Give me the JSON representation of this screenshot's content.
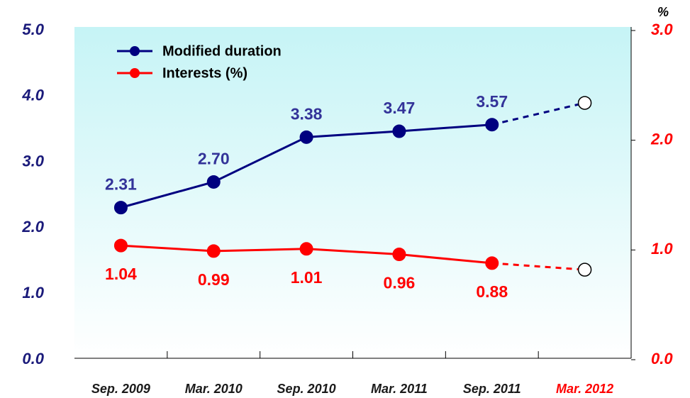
{
  "chart_data": {
    "type": "line",
    "categories": [
      "Sep. 2009",
      "Mar. 2010",
      "Sep. 2010",
      "Mar. 2011",
      "Sep. 2011",
      "Mar. 2012"
    ],
    "category_colors": [
      "#1a1a1a",
      "#1a1a1a",
      "#1a1a1a",
      "#1a1a1a",
      "#1a1a1a",
      "#ff0000"
    ],
    "series": [
      {
        "name": "Modified duration",
        "color": "#000080",
        "label_color": "#333399",
        "axis": "y",
        "values": [
          2.31,
          2.7,
          3.38,
          3.47,
          3.57,
          3.9
        ],
        "value_labels": [
          "2.31",
          "2.70",
          "3.38",
          "3.47",
          "3.57",
          null
        ],
        "dashed_last_segment": true
      },
      {
        "name": "Interests (%)",
        "color": "#ff0000",
        "label_color": "#ff0000",
        "axis": "y2",
        "values": [
          1.04,
          0.99,
          1.01,
          0.96,
          0.88,
          0.82
        ],
        "value_labels": [
          "1.04",
          "0.99",
          "1.01",
          "0.96",
          "0.88",
          null
        ],
        "dashed_last_segment": true
      }
    ],
    "ylim": [
      0,
      5
    ],
    "yticks": [
      {
        "value": 0,
        "label": "0.0"
      },
      {
        "value": 1,
        "label": "1.0"
      },
      {
        "value": 2,
        "label": "2.0"
      },
      {
        "value": 3,
        "label": "3.0"
      },
      {
        "value": 4,
        "label": "4.0"
      },
      {
        "value": 5,
        "label": "5.0"
      }
    ],
    "y_color": "#1a1a7a",
    "y2lim": [
      0,
      3
    ],
    "y2ticks": [
      {
        "value": 0,
        "label": "0.0"
      },
      {
        "value": 1,
        "label": "1.0"
      },
      {
        "value": 2,
        "label": "2.0"
      },
      {
        "value": 3,
        "label": "3.0"
      }
    ],
    "y2_color": "#ff0000",
    "y2_label": "%",
    "legend": "upper left"
  }
}
